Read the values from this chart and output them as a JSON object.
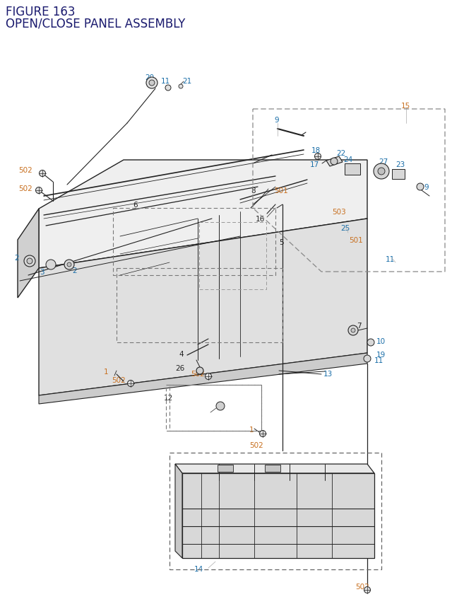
{
  "title_line1": "FIGURE 163",
  "title_line2": "OPEN/CLOSE PANEL ASSEMBLY",
  "navy": "#1a1a6e",
  "blue": "#1a6ea8",
  "orange": "#c87020",
  "dark": "#222222",
  "gray": "#555555",
  "lgray": "#aaaaaa",
  "bg": "#ffffff",
  "fig_width": 6.4,
  "fig_height": 8.62,
  "dpi": 100
}
